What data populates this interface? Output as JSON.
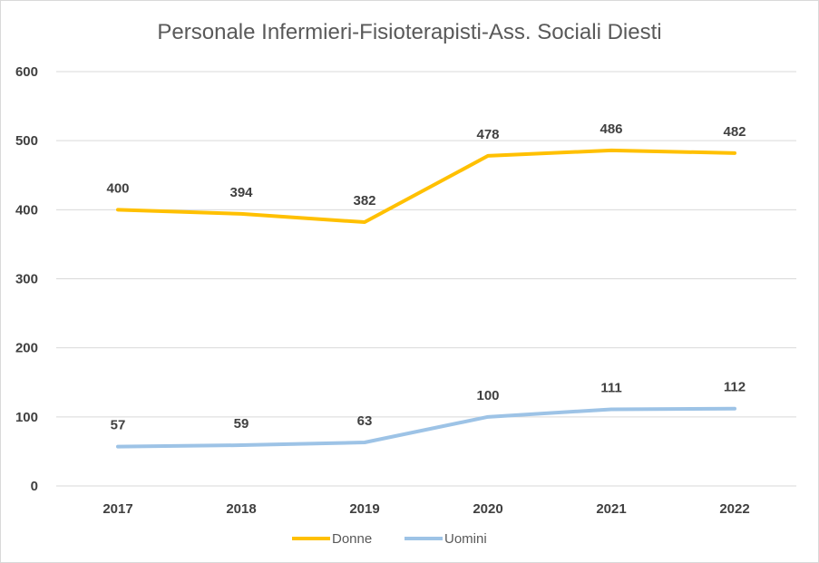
{
  "colors": {
    "donne": "#FFC000",
    "uomini": "#9DC3E6",
    "grid": "#d9d9d9",
    "text": "#404040"
  },
  "chart_data": {
    "type": "line",
    "title": "Personale Infermieri-Fisioterapisti-Ass. Sociali Diesti",
    "xlabel": "",
    "ylabel": "",
    "categories": [
      "2017",
      "2018",
      "2019",
      "2020",
      "2021",
      "2022"
    ],
    "ylim": [
      0,
      600
    ],
    "yticks": [
      0,
      100,
      200,
      300,
      400,
      500,
      600
    ],
    "grid": true,
    "legend_position": "bottom",
    "series": [
      {
        "name": "Donne",
        "values": [
          400,
          394,
          382,
          478,
          486,
          482
        ],
        "color": "#FFC000"
      },
      {
        "name": "Uomini",
        "values": [
          57,
          59,
          63,
          100,
          111,
          112
        ],
        "color": "#9DC3E6"
      }
    ]
  }
}
